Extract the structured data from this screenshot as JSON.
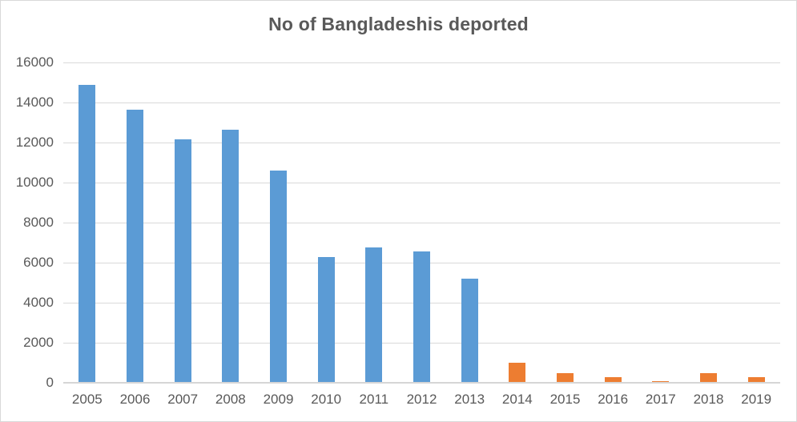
{
  "chart_data": {
    "type": "bar",
    "title": "No of Bangladeshis deported",
    "xlabel": "",
    "ylabel": "",
    "categories": [
      "2005",
      "2006",
      "2007",
      "2008",
      "2009",
      "2010",
      "2011",
      "2012",
      "2013",
      "2014",
      "2015",
      "2016",
      "2017",
      "2018",
      "2019"
    ],
    "values": [
      14900,
      13650,
      12150,
      12650,
      10600,
      6300,
      6750,
      6550,
      5200,
      1000,
      500,
      300,
      50,
      500,
      300
    ],
    "bar_colors": [
      "#5B9BD5",
      "#5B9BD5",
      "#5B9BD5",
      "#5B9BD5",
      "#5B9BD5",
      "#5B9BD5",
      "#5B9BD5",
      "#5B9BD5",
      "#5B9BD5",
      "#ED7D31",
      "#ED7D31",
      "#ED7D31",
      "#ED7D31",
      "#ED7D31",
      "#ED7D31"
    ],
    "yticks": [
      0,
      2000,
      4000,
      6000,
      8000,
      10000,
      12000,
      14000,
      16000
    ],
    "ylim": [
      0,
      16000
    ],
    "grid": "horizontal",
    "legend": "none",
    "colors": {
      "bar_blue": "#5B9BD5",
      "bar_orange": "#ED7D31",
      "gridline": "#D9D9D9",
      "axis_line": "#D6D6D6",
      "tick_text": "#595959",
      "title_text": "#595959",
      "background": "#FFFFFF",
      "border": "#D9D9D9"
    }
  }
}
